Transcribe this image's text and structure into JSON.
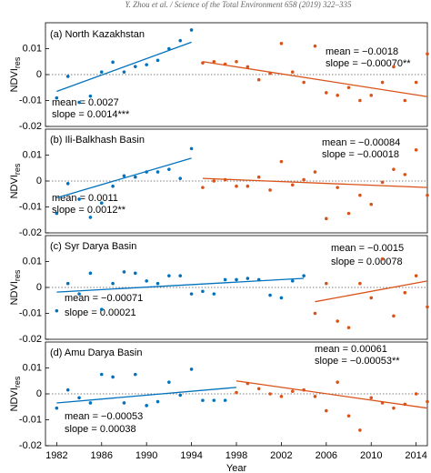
{
  "header": "Y. Zhou et al. / Science of the Total Environment 658 (2019) 322–335",
  "chart_data": [
    {
      "type": "scatter",
      "title": "(a) North Kazakhstan",
      "ylabel": "NDVI",
      "ylabel_sub": "res",
      "xlim": [
        1981,
        2015
      ],
      "ylim": [
        -0.02,
        0.02
      ],
      "yticks": [
        -0.02,
        -0.01,
        0,
        0.01
      ],
      "annotations": [
        "mean = 0.0027",
        "slope = 0.0014***",
        "mean = −0.0018",
        "slope = −0.00070**"
      ],
      "series": [
        {
          "color": "#0072bd",
          "x": [
            1982,
            1983,
            1984,
            1985,
            1986,
            1987,
            1988,
            1989,
            1990,
            1991,
            1992,
            1993,
            1994
          ],
          "values": [
            -0.009,
            -0.0007,
            -0.0107,
            -0.0083,
            0.001,
            0.0048,
            0.001,
            0.0031,
            0.0038,
            0.0055,
            0.01,
            0.0131,
            0.0172
          ],
          "trend": {
            "x": [
              1982,
              1994
            ],
            "y": [
              -0.0065,
              0.0125
            ]
          }
        },
        {
          "color": "#d95319",
          "x": [
            1995,
            1996,
            1997,
            1998,
            1999,
            2000,
            2001,
            2002,
            2003,
            2004,
            2005,
            2006,
            2007,
            2008,
            2009,
            2010,
            2011,
            2012,
            2013,
            2014,
            2015
          ],
          "values": [
            0.0045,
            0.005,
            0.004,
            0.005,
            0.003,
            -0.002,
            0.0005,
            0.012,
            0.001,
            -0.003,
            0.011,
            -0.007,
            -0.008,
            -0.005,
            -0.01,
            -0.008,
            -0.003,
            0.003,
            -0.01,
            -0.003,
            0.008
          ],
          "trend": {
            "x": [
              1995,
              2015
            ],
            "y": [
              0.005,
              -0.0085
            ]
          }
        }
      ]
    },
    {
      "type": "scatter",
      "title": "(b) Ili-Balkhash Basin",
      "ylabel": "NDVI",
      "ylabel_sub": "res",
      "xlim": [
        1981,
        2015
      ],
      "ylim": [
        -0.02,
        0.02
      ],
      "yticks": [
        -0.02,
        -0.01,
        0,
        0.01
      ],
      "annotations": [
        "mean = 0.0011",
        "slope = 0.0012**",
        "mean = −0.00084",
        "slope = −0.00018"
      ],
      "series": [
        {
          "color": "#0072bd",
          "x": [
            1982,
            1983,
            1984,
            1985,
            1986,
            1987,
            1988,
            1989,
            1990,
            1991,
            1992,
            1993,
            1994
          ],
          "values": [
            -0.0125,
            -0.001,
            -0.007,
            -0.014,
            -0.0085,
            -0.002,
            0.002,
            0.0015,
            0.0035,
            0.0035,
            0.0045,
            0.001,
            0.0125
          ],
          "trend": {
            "x": [
              1982,
              1994
            ],
            "y": [
              -0.0065,
              0.0088
            ]
          }
        },
        {
          "color": "#d95319",
          "x": [
            1995,
            1996,
            1997,
            1998,
            1999,
            2000,
            2001,
            2002,
            2003,
            2004,
            2005,
            2006,
            2007,
            2008,
            2009,
            2010,
            2011,
            2012,
            2013,
            2014,
            2015
          ],
          "values": [
            -0.0025,
            0,
            0.0005,
            -0.002,
            -0.002,
            0.0015,
            -0.0035,
            0.0075,
            -0.0015,
            0.0005,
            0.0035,
            -0.0145,
            -0.0025,
            -0.0125,
            -0.0055,
            -0.009,
            -0.0005,
            0.0045,
            0.0025,
            0.012,
            -0.0055
          ],
          "trend": {
            "x": [
              1995,
              2015
            ],
            "y": [
              0.001,
              -0.0025
            ]
          }
        }
      ]
    },
    {
      "type": "scatter",
      "title": "(c) Syr Darya Basin",
      "ylabel": "NDVI",
      "ylabel_sub": "res",
      "xlim": [
        1981,
        2015
      ],
      "ylim": [
        -0.02,
        0.02
      ],
      "yticks": [
        -0.02,
        -0.01,
        0,
        0.01
      ],
      "annotations": [
        "mean = −0.00071",
        "slope = 0.00021",
        "mean = −0.0015",
        "slope = 0.00078"
      ],
      "series": [
        {
          "color": "#0072bd",
          "x": [
            1982,
            1983,
            1984,
            1985,
            1986,
            1987,
            1988,
            1989,
            1990,
            1991,
            1992,
            1993,
            1994,
            1995,
            1996,
            1997,
            1998,
            1999,
            2000,
            2001,
            2002,
            2003,
            2004
          ],
          "values": [
            -0.009,
            0.0015,
            -0.0025,
            0.0055,
            -0.0085,
            0.0015,
            0.006,
            0.0055,
            0.0025,
            0.0015,
            0.0045,
            0.0045,
            -0.0025,
            -0.0015,
            -0.0025,
            0.003,
            0.003,
            0.0035,
            0.003,
            -0.003,
            -0.004,
            0.0025,
            0.0045
          ],
          "trend": {
            "x": [
              1982,
              2004
            ],
            "y": [
              -0.0018,
              0.0035
            ]
          }
        },
        {
          "color": "#d95319",
          "x": [
            2005,
            2006,
            2007,
            2008,
            2009,
            2010,
            2011,
            2012,
            2013,
            2014,
            2015
          ],
          "values": [
            -0.01,
            0.0015,
            -0.013,
            -0.0155,
            0.0015,
            -0.004,
            0.011,
            -0.011,
            -0.002,
            0.0045,
            -0.0075
          ],
          "trend": {
            "x": [
              2005,
              2015
            ],
            "y": [
              -0.0055,
              0.0025
            ]
          }
        }
      ]
    },
    {
      "type": "scatter",
      "title": "(d) Amu Darya Basin",
      "ylabel": "NDVI",
      "ylabel_sub": "res",
      "xlabel": "Year",
      "xlim": [
        1981,
        2015
      ],
      "xticks": [
        1982,
        1986,
        1990,
        1994,
        1998,
        2002,
        2006,
        2010,
        2014
      ],
      "ylim": [
        -0.02,
        0.02
      ],
      "yticks": [
        -0.02,
        -0.01,
        0,
        0.01
      ],
      "annotations": [
        "mean = −0.00053",
        "slope = 0.00038",
        "mean = 0.00061",
        "slope = −0.00053**"
      ],
      "series": [
        {
          "color": "#0072bd",
          "x": [
            1982,
            1983,
            1984,
            1985,
            1986,
            1987,
            1988,
            1989,
            1990,
            1991,
            1992,
            1993,
            1994,
            1995,
            1996,
            1997
          ],
          "values": [
            -0.0055,
            0.0015,
            -0.0015,
            -0.0035,
            0.0075,
            0.0065,
            -0.0035,
            0.0075,
            -0.0045,
            -0.003,
            0.0045,
            -0.0005,
            0.0095,
            -0.0025,
            -0.0025,
            -0.0025
          ],
          "trend": {
            "x": [
              1982,
              1998
            ],
            "y": [
              -0.0035,
              0.0025
            ]
          }
        },
        {
          "color": "#d95319",
          "x": [
            1998,
            1999,
            2000,
            2001,
            2002,
            2003,
            2004,
            2005,
            2006,
            2007,
            2008,
            2009,
            2010,
            2011,
            2012,
            2013,
            2014,
            2015
          ],
          "values": [
            0.0005,
            0.004,
            0.002,
            0,
            -0.001,
            0.001,
            0.0015,
            -0.001,
            -0.0065,
            0.0045,
            -0.0085,
            -0.014,
            -0.0015,
            -0.0035,
            -0.0055,
            -0.004,
            0,
            -0.003
          ],
          "trend": {
            "x": [
              1998,
              2015
            ],
            "y": [
              0.005,
              -0.0055
            ]
          }
        }
      ]
    }
  ]
}
